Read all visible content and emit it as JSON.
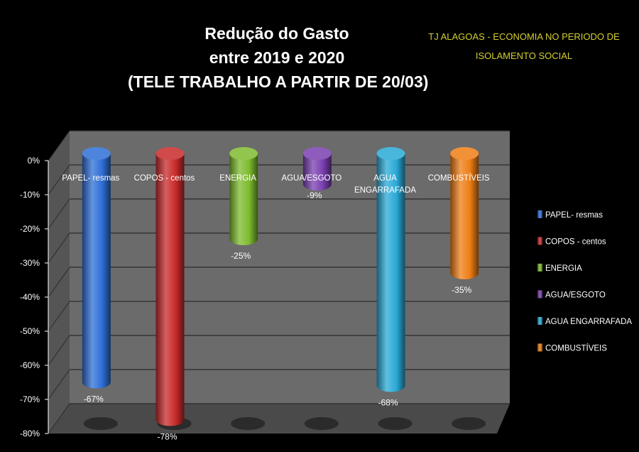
{
  "chart_data": {
    "type": "bar",
    "title_lines": [
      "Redução do Gasto",
      "entre  2019  e 2020",
      "(TELE TRABALHO A PARTIR DE 20/03)"
    ],
    "subtitle_lines": [
      "TJ ALAGOAS - ECONOMIA NO PERIODO DE",
      "ISOLAMENTO SOCIAL"
    ],
    "categories": [
      "PAPEL- resmas",
      "COPOS - centos",
      "ENERGIA",
      "AGUA/ESGOTO",
      "AGUA ENGARRAFADA",
      "COMBUSTÍVEIS"
    ],
    "category_label_lines": [
      [
        "PAPEL- resmas"
      ],
      [
        "COPOS - centos"
      ],
      [
        "ENERGIA"
      ],
      [
        "AGUA/ESGOTO"
      ],
      [
        "AGUA",
        "ENGARRAFADA"
      ],
      [
        "COMBUSTÍVEIS"
      ]
    ],
    "values": [
      -67,
      -78,
      -25,
      -9,
      -68,
      -35
    ],
    "data_labels": [
      "-67%",
      "-78%",
      "-25%",
      "-9%",
      "-68%",
      "-35%"
    ],
    "colors": [
      "#2f6fd6",
      "#c82a2a",
      "#7dbb2e",
      "#7a3fb0",
      "#29a9d6",
      "#ee7d15"
    ],
    "y_ticks": [
      0,
      -10,
      -20,
      -30,
      -40,
      -50,
      -60,
      -70,
      -80
    ],
    "y_tick_labels": [
      "0%",
      "-10%",
      "-20%",
      "-30%",
      "-40%",
      "-50%",
      "-60%",
      "-70%",
      "-80%"
    ],
    "ylim": [
      -80,
      0
    ],
    "legend": [
      "PAPEL- resmas",
      "COPOS - centos",
      "ENERGIA",
      "AGUA/ESGOTO",
      "AGUA ENGARRAFADA",
      "COMBUSTÍVEIS"
    ],
    "legend_position": "right",
    "grid": true,
    "bar_shape": "cylinder-3d"
  }
}
